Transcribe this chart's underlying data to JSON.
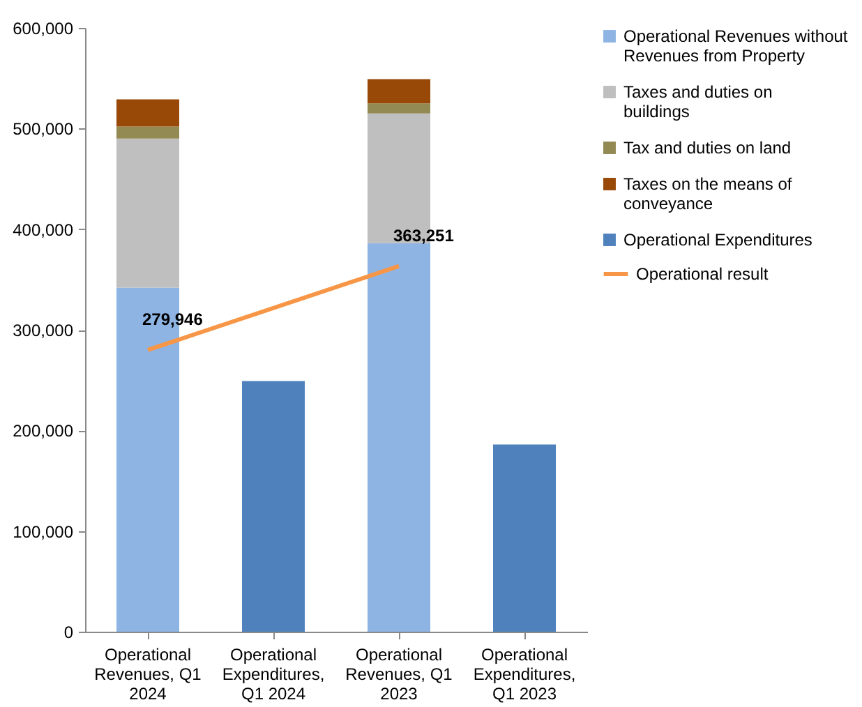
{
  "chart_data": {
    "type": "bar",
    "stacked": true,
    "categories": [
      "Operational Revenues, Q1 2024",
      "Operational Expenditures, Q1 2024",
      "Operational Revenues, Q1 2023",
      "Operational Expenditures, Q1 2023"
    ],
    "series": [
      {
        "name": "Operational Revenues without Revenues from Property",
        "color": "#8eb4e3",
        "values": [
          342000,
          null,
          386000,
          null
        ]
      },
      {
        "name": "Taxes and duties on buildings",
        "color": "#bfbfbf",
        "values": [
          148000,
          null,
          129000,
          null
        ]
      },
      {
        "name": "Tax and duties on land",
        "color": "#938953",
        "values": [
          12000,
          null,
          10000,
          null
        ]
      },
      {
        "name": "Taxes on the means of conveyance",
        "color": "#984807",
        "values": [
          27000,
          null,
          24000,
          null
        ]
      },
      {
        "name": "Operational Expenditures",
        "color": "#4f81bd",
        "values": [
          null,
          249000,
          null,
          186000
        ]
      },
      {
        "name": "Operational result",
        "type": "line",
        "color": "#f79646",
        "x": [
          "Operational Revenues, Q1 2024",
          "Operational Revenues, Q1 2023"
        ],
        "values": [
          279946,
          363251
        ],
        "value_labels": [
          "279,946",
          "363,251"
        ]
      }
    ],
    "ylim": [
      0,
      600000
    ],
    "yticks": [
      0,
      {
        "value": 100000,
        "label": "100,000"
      },
      {
        "value": 200000,
        "label": "200,000"
      },
      {
        "value": 300000,
        "label": "300,000"
      },
      {
        "value": 400000,
        "label": "400,000"
      },
      {
        "value": 500000,
        "label": "500,000"
      },
      {
        "value": 600000,
        "label": "600,000"
      }
    ],
    "grid": false,
    "legend": "right"
  }
}
